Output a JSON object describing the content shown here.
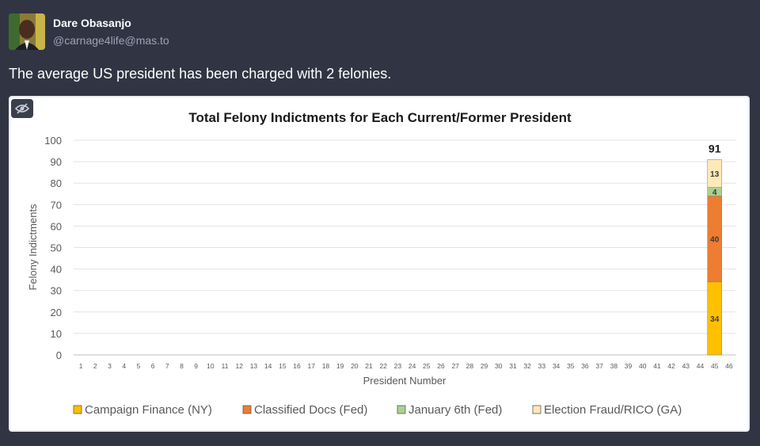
{
  "post": {
    "display_name": "Dare Obasanjo",
    "handle": "@carnage4life@mas.to",
    "text": "The average US president has been charged with 2 felonies."
  },
  "media": {
    "hide_icon": "eye-slash-icon"
  },
  "colors": {
    "background": "#313543",
    "campaign_finance": "#FFC000",
    "classified_docs": "#ED7D31",
    "january_6th": "#A9D18E",
    "election_fraud": "#FFE9B8"
  },
  "chart_data": {
    "type": "bar",
    "stacked": true,
    "title": "Total Felony Indictments for Each Current/Former President",
    "xlabel": "President Number",
    "ylabel": "Felony Indictments",
    "ylim": [
      0,
      100
    ],
    "yticks": [
      "0",
      "10",
      "20",
      "30",
      "40",
      "50",
      "60",
      "70",
      "80",
      "90",
      "100"
    ],
    "categories": [
      "1",
      "2",
      "3",
      "4",
      "5",
      "6",
      "7",
      "8",
      "9",
      "10",
      "11",
      "12",
      "13",
      "14",
      "15",
      "16",
      "17",
      "18",
      "19",
      "20",
      "21",
      "22",
      "23",
      "24",
      "25",
      "26",
      "27",
      "28",
      "29",
      "30",
      "31",
      "32",
      "33",
      "34",
      "35",
      "36",
      "37",
      "38",
      "39",
      "40",
      "41",
      "42",
      "43",
      "44",
      "45",
      "46"
    ],
    "series": [
      {
        "name": "Campaign Finance (NY)",
        "color": "#FFC000",
        "values": [
          0,
          0,
          0,
          0,
          0,
          0,
          0,
          0,
          0,
          0,
          0,
          0,
          0,
          0,
          0,
          0,
          0,
          0,
          0,
          0,
          0,
          0,
          0,
          0,
          0,
          0,
          0,
          0,
          0,
          0,
          0,
          0,
          0,
          0,
          0,
          0,
          0,
          0,
          0,
          0,
          0,
          0,
          0,
          0,
          34,
          0
        ]
      },
      {
        "name": "Classified Docs (Fed)",
        "color": "#ED7D31",
        "values": [
          0,
          0,
          0,
          0,
          0,
          0,
          0,
          0,
          0,
          0,
          0,
          0,
          0,
          0,
          0,
          0,
          0,
          0,
          0,
          0,
          0,
          0,
          0,
          0,
          0,
          0,
          0,
          0,
          0,
          0,
          0,
          0,
          0,
          0,
          0,
          0,
          0,
          0,
          0,
          0,
          0,
          0,
          0,
          0,
          40,
          0
        ]
      },
      {
        "name": "January 6th (Fed)",
        "color": "#A9D18E",
        "values": [
          0,
          0,
          0,
          0,
          0,
          0,
          0,
          0,
          0,
          0,
          0,
          0,
          0,
          0,
          0,
          0,
          0,
          0,
          0,
          0,
          0,
          0,
          0,
          0,
          0,
          0,
          0,
          0,
          0,
          0,
          0,
          0,
          0,
          0,
          0,
          0,
          0,
          0,
          0,
          0,
          0,
          0,
          0,
          0,
          4,
          0
        ]
      },
      {
        "name": "Election Fraud/RICO (GA)",
        "color": "#FFE9B8",
        "values": [
          0,
          0,
          0,
          0,
          0,
          0,
          0,
          0,
          0,
          0,
          0,
          0,
          0,
          0,
          0,
          0,
          0,
          0,
          0,
          0,
          0,
          0,
          0,
          0,
          0,
          0,
          0,
          0,
          0,
          0,
          0,
          0,
          0,
          0,
          0,
          0,
          0,
          0,
          0,
          0,
          0,
          0,
          0,
          0,
          13,
          0
        ]
      }
    ],
    "total_labels": [
      {
        "category": "45",
        "value": "91"
      }
    ],
    "legend_position": "bottom",
    "grid": true
  }
}
